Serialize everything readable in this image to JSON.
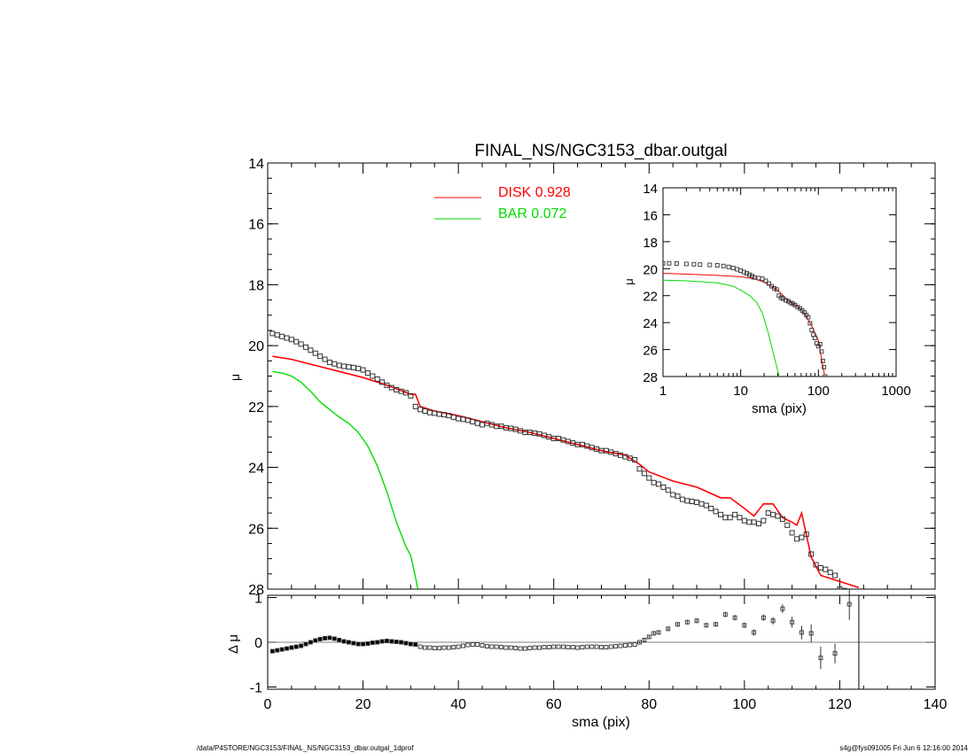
{
  "footer": {
    "left": "/data/P4STORE/NGC3153/FINAL_NS/NGC3153_dbar.outgal_1dprof",
    "right": "s4g@fys091005  Fri Jun  6 12:16:00 2014"
  },
  "chart_data": [
    {
      "type": "line",
      "title": "FINAL_NS/NGC3153_dbar.outgal",
      "xlabel": "",
      "ylabel": "μ",
      "xlim": [
        0,
        140
      ],
      "ylim": [
        28,
        14
      ],
      "yticks": [
        14,
        16,
        18,
        20,
        22,
        24,
        26,
        28
      ],
      "legend": [
        {
          "label": "DISK  0.928",
          "color": "#ff0000"
        },
        {
          "label": "BAR  0.072",
          "color": "#00dd00"
        }
      ],
      "series": [
        {
          "name": "DISK  0.928",
          "color": "#ff0000",
          "x": [
            1,
            5,
            10,
            15,
            20,
            25,
            30,
            31,
            32,
            35,
            40,
            45,
            50,
            55,
            60,
            65,
            70,
            75,
            78,
            80,
            85,
            90,
            95,
            97,
            100,
            102,
            104,
            106,
            108,
            110,
            111,
            112,
            114,
            116,
            120,
            124
          ],
          "values": [
            20.35,
            20.45,
            20.65,
            20.85,
            21.05,
            21.3,
            21.6,
            21.6,
            22.0,
            22.15,
            22.3,
            22.5,
            22.7,
            22.85,
            23.05,
            23.25,
            23.45,
            23.6,
            23.9,
            24.15,
            24.45,
            24.65,
            25.0,
            25.0,
            25.35,
            25.6,
            25.2,
            25.2,
            25.65,
            25.8,
            25.9,
            25.5,
            26.95,
            27.55,
            27.75,
            27.95
          ]
        },
        {
          "name": "BAR  0.072",
          "color": "#00dd00",
          "x": [
            1,
            3,
            5,
            7,
            9,
            11,
            13,
            15,
            17,
            19,
            21,
            23,
            25,
            27,
            29,
            30,
            31,
            31.5
          ],
          "values": [
            20.85,
            20.9,
            21.0,
            21.2,
            21.5,
            21.85,
            22.1,
            22.35,
            22.55,
            22.85,
            23.3,
            23.95,
            24.8,
            25.8,
            26.6,
            26.9,
            27.6,
            28.0
          ]
        },
        {
          "name": "",
          "color": "#000000",
          "marker": "square",
          "x": [
            1,
            2,
            3,
            4,
            5,
            6,
            7,
            8,
            9,
            10,
            11,
            12,
            13,
            14,
            15,
            16,
            17,
            18,
            19,
            20,
            21,
            22,
            23,
            24,
            25,
            26,
            27,
            28,
            29,
            30,
            31,
            32,
            33,
            34,
            35,
            36,
            37,
            38,
            39,
            40,
            41,
            42,
            43,
            44,
            45,
            46,
            47,
            48,
            49,
            50,
            51,
            52,
            53,
            54,
            55,
            56,
            57,
            58,
            59,
            60,
            61,
            62,
            63,
            64,
            65,
            66,
            67,
            68,
            69,
            70,
            71,
            72,
            73,
            74,
            75,
            76,
            77,
            78,
            79,
            80,
            81,
            82,
            83,
            84,
            85,
            86,
            87,
            88,
            89,
            90,
            91,
            92,
            93,
            94,
            95,
            96,
            97,
            98,
            99,
            100,
            101,
            102,
            103,
            104,
            105,
            106,
            107,
            108,
            109,
            110,
            111,
            112,
            113,
            114,
            115,
            116,
            117,
            118,
            119,
            120,
            121,
            122
          ],
          "values": [
            19.6,
            19.65,
            19.7,
            19.75,
            19.8,
            19.87,
            19.95,
            20.05,
            20.15,
            20.25,
            20.35,
            20.45,
            20.55,
            20.6,
            20.65,
            20.68,
            20.7,
            20.72,
            20.75,
            20.8,
            20.9,
            21.0,
            21.1,
            21.2,
            21.3,
            21.38,
            21.45,
            21.5,
            21.55,
            21.65,
            22.0,
            22.1,
            22.15,
            22.2,
            22.22,
            22.25,
            22.27,
            22.3,
            22.35,
            22.4,
            22.42,
            22.45,
            22.5,
            22.55,
            22.6,
            22.55,
            22.6,
            22.65,
            22.65,
            22.7,
            22.72,
            22.75,
            22.8,
            22.85,
            22.85,
            22.88,
            22.9,
            22.95,
            23.0,
            23.05,
            23.05,
            23.1,
            23.15,
            23.2,
            23.25,
            23.25,
            23.3,
            23.35,
            23.4,
            23.45,
            23.45,
            23.5,
            23.55,
            23.6,
            23.65,
            23.7,
            23.75,
            24.05,
            24.2,
            24.35,
            24.5,
            24.55,
            24.65,
            24.75,
            24.9,
            24.95,
            25.05,
            25.1,
            25.12,
            25.15,
            25.2,
            25.25,
            25.35,
            25.45,
            25.55,
            25.65,
            25.65,
            25.55,
            25.65,
            25.75,
            25.8,
            25.8,
            25.85,
            25.75,
            25.5,
            25.55,
            25.6,
            25.7,
            25.9,
            26.15,
            26.35,
            26.3,
            26.2,
            26.85,
            27.2,
            27.3,
            27.35,
            27.45,
            27.55,
            28.0,
            28.05,
            28.1
          ],
          "note": ""
        }
      ]
    },
    {
      "type": "scatter",
      "title": "",
      "xlabel": "sma (pix)",
      "ylabel": "Δ μ",
      "xlim": [
        0,
        140
      ],
      "ylim": [
        -1.1,
        1.1
      ],
      "xticks": [
        0,
        20,
        40,
        60,
        80,
        100,
        120,
        140
      ],
      "yticks": [
        -1,
        0,
        1
      ],
      "vline_x": 124,
      "series": [
        {
          "name": "",
          "color": "#000000",
          "marker": "square",
          "x": [
            1,
            2,
            3,
            4,
            5,
            6,
            7,
            8,
            9,
            10,
            11,
            12,
            13,
            14,
            15,
            16,
            17,
            18,
            19,
            20,
            21,
            22,
            23,
            24,
            25,
            26,
            27,
            28,
            29,
            30,
            31,
            32,
            33,
            34,
            35,
            36,
            37,
            38,
            39,
            40,
            41,
            42,
            43,
            44,
            45,
            46,
            47,
            48,
            49,
            50,
            51,
            52,
            53,
            54,
            55,
            56,
            57,
            58,
            59,
            60,
            61,
            62,
            63,
            64,
            65,
            66,
            67,
            68,
            69,
            70,
            71,
            72,
            73,
            74,
            75,
            76,
            77,
            78,
            79,
            80,
            81,
            82,
            84,
            86,
            88,
            90,
            92,
            94,
            96,
            98,
            100,
            102,
            104,
            106,
            108,
            110,
            112,
            114,
            116,
            119,
            122
          ],
          "values": [
            -0.2,
            -0.18,
            -0.16,
            -0.14,
            -0.12,
            -0.1,
            -0.08,
            -0.04,
            0.0,
            0.04,
            0.07,
            0.09,
            0.1,
            0.08,
            0.05,
            0.02,
            0.0,
            -0.02,
            -0.04,
            -0.04,
            -0.03,
            -0.01,
            0.0,
            0.02,
            0.03,
            0.02,
            0.01,
            0.0,
            -0.02,
            -0.04,
            -0.05,
            -0.1,
            -0.12,
            -0.12,
            -0.13,
            -0.13,
            -0.12,
            -0.12,
            -0.11,
            -0.1,
            -0.08,
            -0.06,
            -0.05,
            -0.05,
            -0.07,
            -0.09,
            -0.1,
            -0.1,
            -0.11,
            -0.12,
            -0.12,
            -0.13,
            -0.14,
            -0.14,
            -0.13,
            -0.12,
            -0.12,
            -0.11,
            -0.11,
            -0.1,
            -0.1,
            -0.1,
            -0.11,
            -0.11,
            -0.12,
            -0.11,
            -0.1,
            -0.1,
            -0.1,
            -0.11,
            -0.11,
            -0.1,
            -0.09,
            -0.08,
            -0.07,
            -0.06,
            -0.05,
            0.0,
            0.05,
            0.12,
            0.2,
            0.22,
            0.3,
            0.4,
            0.45,
            0.48,
            0.38,
            0.4,
            0.62,
            0.55,
            0.38,
            0.22,
            0.55,
            0.48,
            0.75,
            0.45,
            0.22,
            0.2,
            -0.35,
            -0.25,
            0.85
          ],
          "errors": [
            0.0,
            0.0,
            0.0,
            0.0,
            0.0,
            0.0,
            0.0,
            0.0,
            0.0,
            0.0,
            0.0,
            0.0,
            0.0,
            0.0,
            0.0,
            0.0,
            0.0,
            0.0,
            0.0,
            0.0,
            0.0,
            0.0,
            0.0,
            0.0,
            0.0,
            0.0,
            0.0,
            0.0,
            0.0,
            0.0,
            0.0,
            0.0,
            0.0,
            0.0,
            0.0,
            0.0,
            0.0,
            0.0,
            0.0,
            0.0,
            0.0,
            0.0,
            0.0,
            0.0,
            0.0,
            0.0,
            0.0,
            0.0,
            0.0,
            0.0,
            0.0,
            0.0,
            0.0,
            0.0,
            0.0,
            0.0,
            0.0,
            0.0,
            0.0,
            0.0,
            0.0,
            0.0,
            0.0,
            0.0,
            0.0,
            0.0,
            0.0,
            0.0,
            0.0,
            0.0,
            0.0,
            0.0,
            0.0,
            0.0,
            0.0,
            0.0,
            0.0,
            0.02,
            0.03,
            0.03,
            0.04,
            0.04,
            0.05,
            0.05,
            0.05,
            0.05,
            0.05,
            0.05,
            0.06,
            0.06,
            0.06,
            0.07,
            0.07,
            0.08,
            0.1,
            0.12,
            0.15,
            0.2,
            0.25,
            0.22,
            0.35
          ]
        }
      ]
    },
    {
      "type": "line",
      "title": "",
      "xlabel": "sma (pix)",
      "ylabel": "μ",
      "xscale": "log",
      "xlim": [
        1,
        1000
      ],
      "ylim": [
        28,
        14
      ],
      "xticks": [
        1,
        10,
        100,
        1000
      ],
      "yticks": [
        14,
        16,
        18,
        20,
        22,
        24,
        26,
        28
      ],
      "series": [
        {
          "name": "",
          "color": "#ff0000",
          "x": [
            1,
            2,
            5,
            10,
            15,
            20,
            30,
            40,
            60,
            80,
            100,
            112,
            120
          ],
          "values": [
            20.35,
            20.4,
            20.5,
            20.6,
            20.75,
            21.0,
            21.6,
            22.3,
            23.0,
            24.1,
            25.3,
            27.0,
            27.9
          ]
        },
        {
          "name": "",
          "color": "#00dd00",
          "x": [
            1,
            2,
            5,
            8,
            10,
            13,
            16,
            19,
            22,
            25,
            28,
            30,
            31.5
          ],
          "values": [
            20.85,
            20.9,
            21.05,
            21.3,
            21.6,
            22.0,
            22.5,
            23.3,
            24.5,
            25.8,
            26.9,
            27.6,
            28.0
          ]
        },
        {
          "name": "",
          "color": "#000000",
          "marker": "square",
          "x": [
            1,
            1.2,
            1.5,
            2,
            2.5,
            3,
            4,
            5,
            6,
            7,
            8,
            9,
            10,
            11,
            12,
            13,
            14,
            15,
            17,
            19,
            21,
            23,
            25,
            27,
            29,
            31,
            33,
            35,
            38,
            41,
            44,
            47,
            50,
            54,
            58,
            62,
            66,
            70,
            74,
            78,
            82,
            86,
            90,
            95,
            100,
            105,
            110,
            114,
            118,
            122
          ],
          "values": [
            19.6,
            19.6,
            19.62,
            19.65,
            19.67,
            19.7,
            19.72,
            19.75,
            19.8,
            19.87,
            19.95,
            20.05,
            20.15,
            20.25,
            20.35,
            20.45,
            20.55,
            20.65,
            20.7,
            20.75,
            20.9,
            21.1,
            21.3,
            21.45,
            21.55,
            22.0,
            22.15,
            22.22,
            22.35,
            22.42,
            22.55,
            22.6,
            22.7,
            22.85,
            22.95,
            23.1,
            23.25,
            23.45,
            23.6,
            24.05,
            24.55,
            24.9,
            25.15,
            25.55,
            25.75,
            25.6,
            26.15,
            26.85,
            27.3,
            28.0
          ]
        }
      ]
    }
  ]
}
